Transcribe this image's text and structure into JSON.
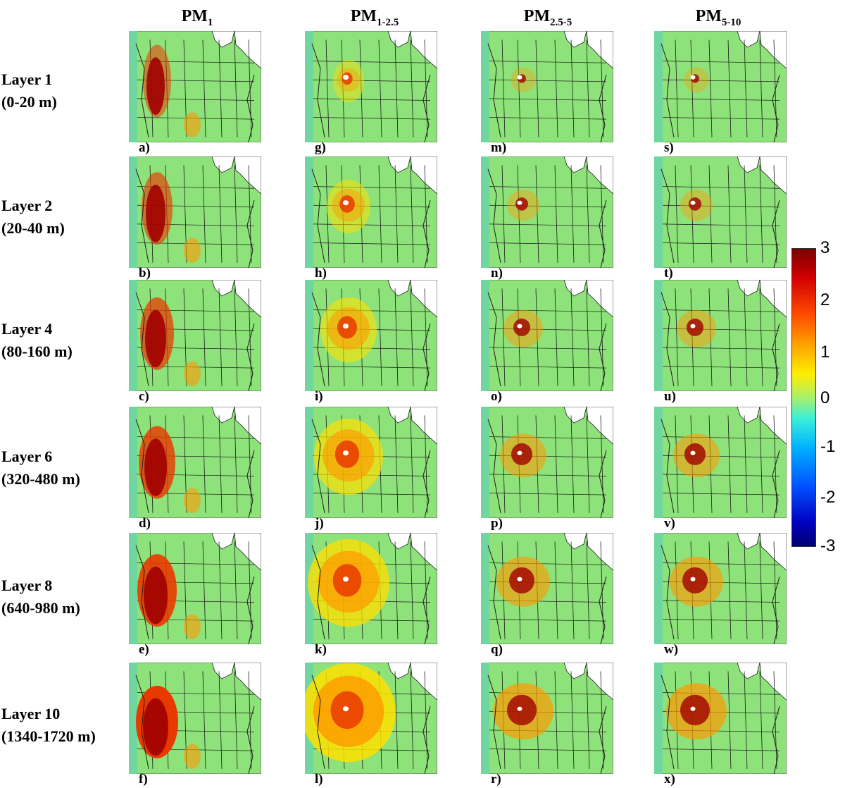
{
  "columns": [
    {
      "base": "PM",
      "sub": "1"
    },
    {
      "base": "PM",
      "sub": "1-2.5"
    },
    {
      "base": "PM",
      "sub": "2.5-5"
    },
    {
      "base": "PM",
      "sub": "5-10"
    }
  ],
  "rows": [
    {
      "name": "Layer 1",
      "range": "(0-20 m)"
    },
    {
      "name": "Layer 2",
      "range": "(20-40 m)"
    },
    {
      "name": "Layer 4",
      "range": "(80-160 m)"
    },
    {
      "name": "Layer 6",
      "range": "(320-480 m)"
    },
    {
      "name": "Layer 8",
      "range": "(640-980 m)"
    },
    {
      "name": "Layer 10",
      "range": "(1340-1720 m)"
    }
  ],
  "panel_letters": [
    [
      "a)",
      "g)",
      "m)",
      "s)"
    ],
    [
      "b)",
      "h)",
      "n)",
      "t)"
    ],
    [
      "c)",
      "i)",
      "o)",
      "u)"
    ],
    [
      "d)",
      "j)",
      "p)",
      "v)"
    ],
    [
      "e)",
      "k)",
      "q)",
      "w)"
    ],
    [
      "f)",
      "l)",
      "r)",
      "x)"
    ]
  ],
  "colorbar": {
    "ticks": [
      "3",
      "2",
      "1",
      "0",
      "-1",
      "-2",
      "-3"
    ],
    "colors": [
      "#7a0000",
      "#d40000",
      "#ff4a00",
      "#ffa000",
      "#ffee00",
      "#a8f06a",
      "#3cf0d8",
      "#00b0ff",
      "#0050ff",
      "#0000c0",
      "#000070"
    ]
  },
  "map_colors": {
    "background": "#8ee27a",
    "ocean_west": "#6fd6a0",
    "outside": "#ffffff",
    "hot": "#a00000",
    "warm": "#e83a00",
    "orange": "#ff9a00",
    "yellow": "#ffe000"
  }
}
